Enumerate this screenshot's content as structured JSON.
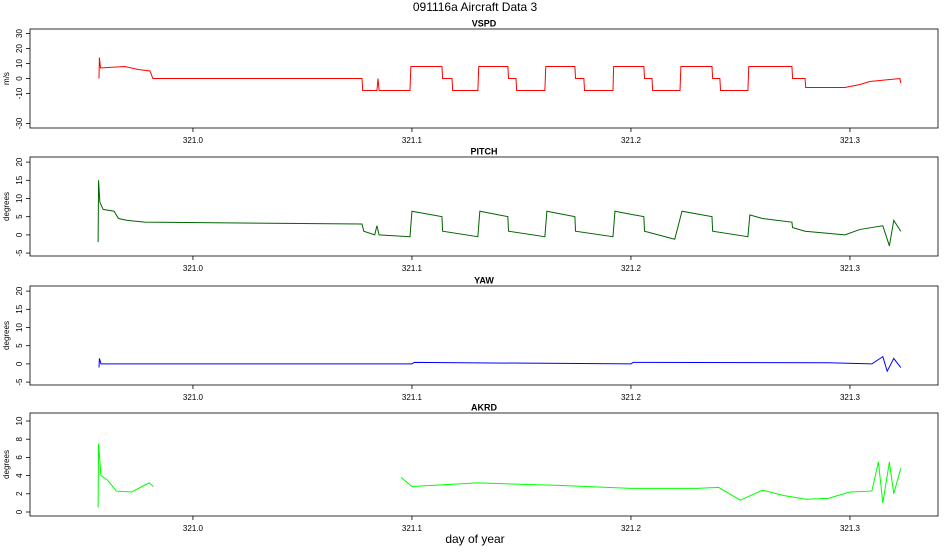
{
  "title": "091116a   Aircraft Data 3",
  "xlabel": "day of year",
  "chart_data": [
    {
      "type": "line",
      "title": "VSPD",
      "ylabel": "m/s",
      "color": "#ff0000",
      "xlim": [
        320.9256,
        321.3402
      ],
      "ylim": [
        -33,
        33
      ],
      "xticks": [
        {
          "value": 321,
          "label": "321.0"
        },
        321.1,
        321.2,
        321.3
      ],
      "yticks": [
        -30,
        -10,
        0,
        10,
        20,
        30
      ],
      "x": [
        320.9571,
        320.9573,
        320.9578,
        320.9689,
        320.975,
        320.9804,
        320.9817,
        321.0772,
        321.0775,
        321.084,
        321.0845,
        321.085,
        321.0991,
        321.0995,
        321.1137,
        321.114,
        321.1183,
        321.1186,
        321.1301,
        321.1305,
        321.1438,
        321.1441,
        321.1475,
        321.1478,
        321.1607,
        321.1611,
        321.1744,
        321.1747,
        321.1785,
        321.1788,
        321.1918,
        321.1921,
        321.2059,
        321.2062,
        321.2096,
        321.2099,
        321.2224,
        321.2228,
        321.237,
        321.2373,
        321.2406,
        321.2409,
        321.2534,
        321.2538,
        321.2735,
        321.2738,
        321.2795,
        321.2798,
        321.2977,
        321.3046,
        321.3091,
        321.3228,
        321.3232
      ],
      "values": [
        0,
        14,
        7,
        8,
        6,
        5,
        0,
        0,
        -8,
        -8,
        0,
        -8,
        -8,
        8,
        8,
        0,
        0,
        -8,
        -8,
        8,
        8,
        0,
        0,
        -8,
        -8,
        8,
        8,
        0,
        0,
        -8,
        -8,
        8,
        8,
        0,
        0,
        -8,
        -8,
        8,
        8,
        0,
        0,
        -8,
        -8,
        8,
        8,
        0,
        0,
        -6,
        -6,
        -4,
        -2,
        0,
        -3
      ]
    },
    {
      "type": "line",
      "title": "PITCH",
      "ylabel": "degrees",
      "color": "#006400",
      "xlim": [
        320.9256,
        321.3402
      ],
      "ylim": [
        -5.8,
        21.4
      ],
      "xticks": [
        {
          "value": 321,
          "label": "321.0"
        },
        321.1,
        321.2,
        321.3
      ],
      "yticks": [
        -5,
        0,
        5,
        10,
        15,
        20
      ],
      "x": [
        320.9567,
        320.9569,
        320.9575,
        320.959,
        320.964,
        320.966,
        320.97,
        320.978,
        321.0772,
        321.078,
        321.083,
        321.084,
        321.085,
        321.0991,
        321.1,
        321.1137,
        321.114,
        321.1301,
        321.131,
        321.1438,
        321.1441,
        321.1607,
        321.1616,
        321.1744,
        321.1747,
        321.1918,
        321.1927,
        321.2059,
        321.2062,
        321.22,
        321.2233,
        321.237,
        321.2373,
        321.2534,
        321.2543,
        321.26,
        321.2735,
        321.2738,
        321.2795,
        321.2977,
        321.3046,
        321.315,
        321.318,
        321.32,
        321.3232
      ],
      "values": [
        -2,
        15,
        9,
        7,
        6.5,
        4.5,
        4,
        3.5,
        3,
        1,
        0,
        2.5,
        0,
        -0.5,
        6.5,
        5,
        1,
        -0.5,
        6.5,
        5,
        1,
        -0.5,
        6.5,
        5,
        1,
        -0.5,
        6.5,
        5,
        1,
        -1.2,
        6.5,
        5,
        1,
        -0.5,
        5.5,
        4.5,
        3.5,
        2,
        1,
        0,
        1.5,
        2.5,
        -3,
        4,
        1
      ]
    },
    {
      "type": "line",
      "title": "YAW",
      "ylabel": "degrees",
      "color": "#0000ff",
      "xlim": [
        320.9256,
        321.3402
      ],
      "ylim": [
        -5.8,
        21.4
      ],
      "xticks": [
        {
          "value": 321,
          "label": "321.0"
        },
        321.1,
        321.2,
        321.3
      ],
      "yticks": [
        -5,
        0,
        5,
        10,
        15,
        20
      ],
      "x": [
        320.9571,
        320.9573,
        320.958,
        321.1,
        321.101,
        321.2,
        321.201,
        321.29,
        321.31,
        321.315,
        321.317,
        321.32,
        321.3232
      ],
      "values": [
        -1,
        1.5,
        0,
        0,
        0.4,
        0,
        0.4,
        0.3,
        0,
        2,
        -2,
        1.5,
        -1
      ]
    },
    {
      "type": "line",
      "title": "AKRD",
      "ylabel": "degrees",
      "color": "#00ff00",
      "xlim": [
        320.9256,
        321.3402
      ],
      "ylim": [
        -0.44,
        10.88
      ],
      "xticks": [
        {
          "value": 321,
          "label": "321.0"
        },
        321.1,
        321.2,
        321.3
      ],
      "yticks": [
        0,
        2,
        4,
        6,
        8,
        10
      ],
      "x": [
        320.9567,
        320.9569,
        320.958,
        320.961,
        320.965,
        320.972,
        320.98,
        320.982,
        321.05,
        321.095,
        321.1,
        321.13,
        321.17,
        321.2,
        321.23,
        321.24,
        321.25,
        321.26,
        321.27,
        321.28,
        321.29,
        321.3,
        321.31,
        321.313,
        321.315,
        321.318,
        321.32,
        321.3232
      ],
      "values": [
        0.5,
        7.5,
        4,
        3.5,
        2.3,
        2.2,
        3.2,
        2.8,
        null,
        3.8,
        2.8,
        3.2,
        2.9,
        2.6,
        2.6,
        2.7,
        1.3,
        2.4,
        1.8,
        1.4,
        1.5,
        2.2,
        2.3,
        5.5,
        1,
        5.5,
        2,
        4.8
      ]
    }
  ]
}
